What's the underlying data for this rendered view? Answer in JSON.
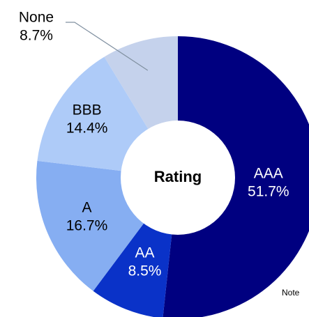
{
  "chart_data": {
    "type": "pie",
    "donut": true,
    "center_label": "Rating",
    "categories": [
      "AAA",
      "AA",
      "A",
      "BBB",
      "None"
    ],
    "values": [
      51.7,
      8.5,
      16.7,
      14.4,
      8.7
    ],
    "value_labels": [
      "51.7%",
      "8.5%",
      "16.7%",
      "14.4%",
      "8.7%"
    ],
    "colors": [
      "#000080",
      "#0a32c8",
      "#86aef2",
      "#aecbf8",
      "#c5d2ec"
    ],
    "annotation": "Note"
  }
}
